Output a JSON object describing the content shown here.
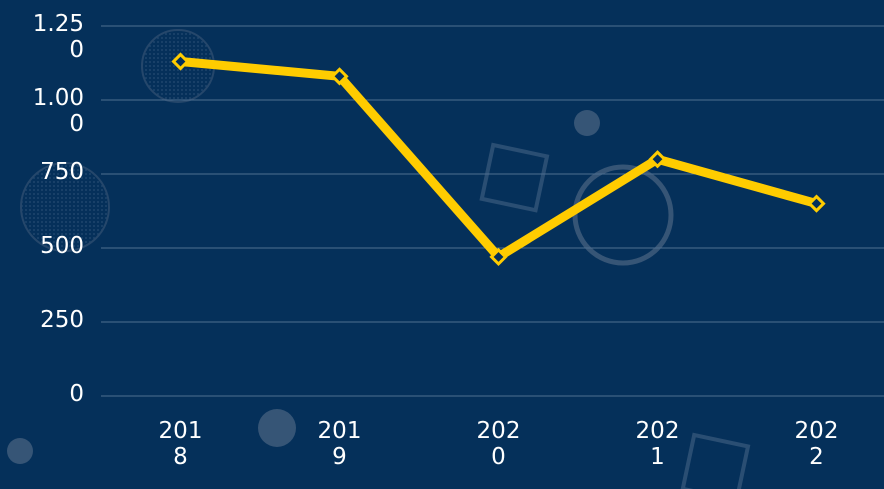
{
  "chart_data": {
    "type": "line",
    "categories": [
      "2018",
      "2019",
      "2020",
      "2021",
      "2022"
    ],
    "series": [
      {
        "color": "#ffcc00",
        "values": [
          1130,
          1080,
          470,
          800,
          650
        ]
      }
    ],
    "ylim": [
      0,
      1250
    ],
    "yticks": [
      0,
      250,
      500,
      750,
      {
        "value": 1000,
        "label": "1.000"
      },
      {
        "value": 1250,
        "label": "1.250"
      }
    ],
    "grid": true
  }
}
